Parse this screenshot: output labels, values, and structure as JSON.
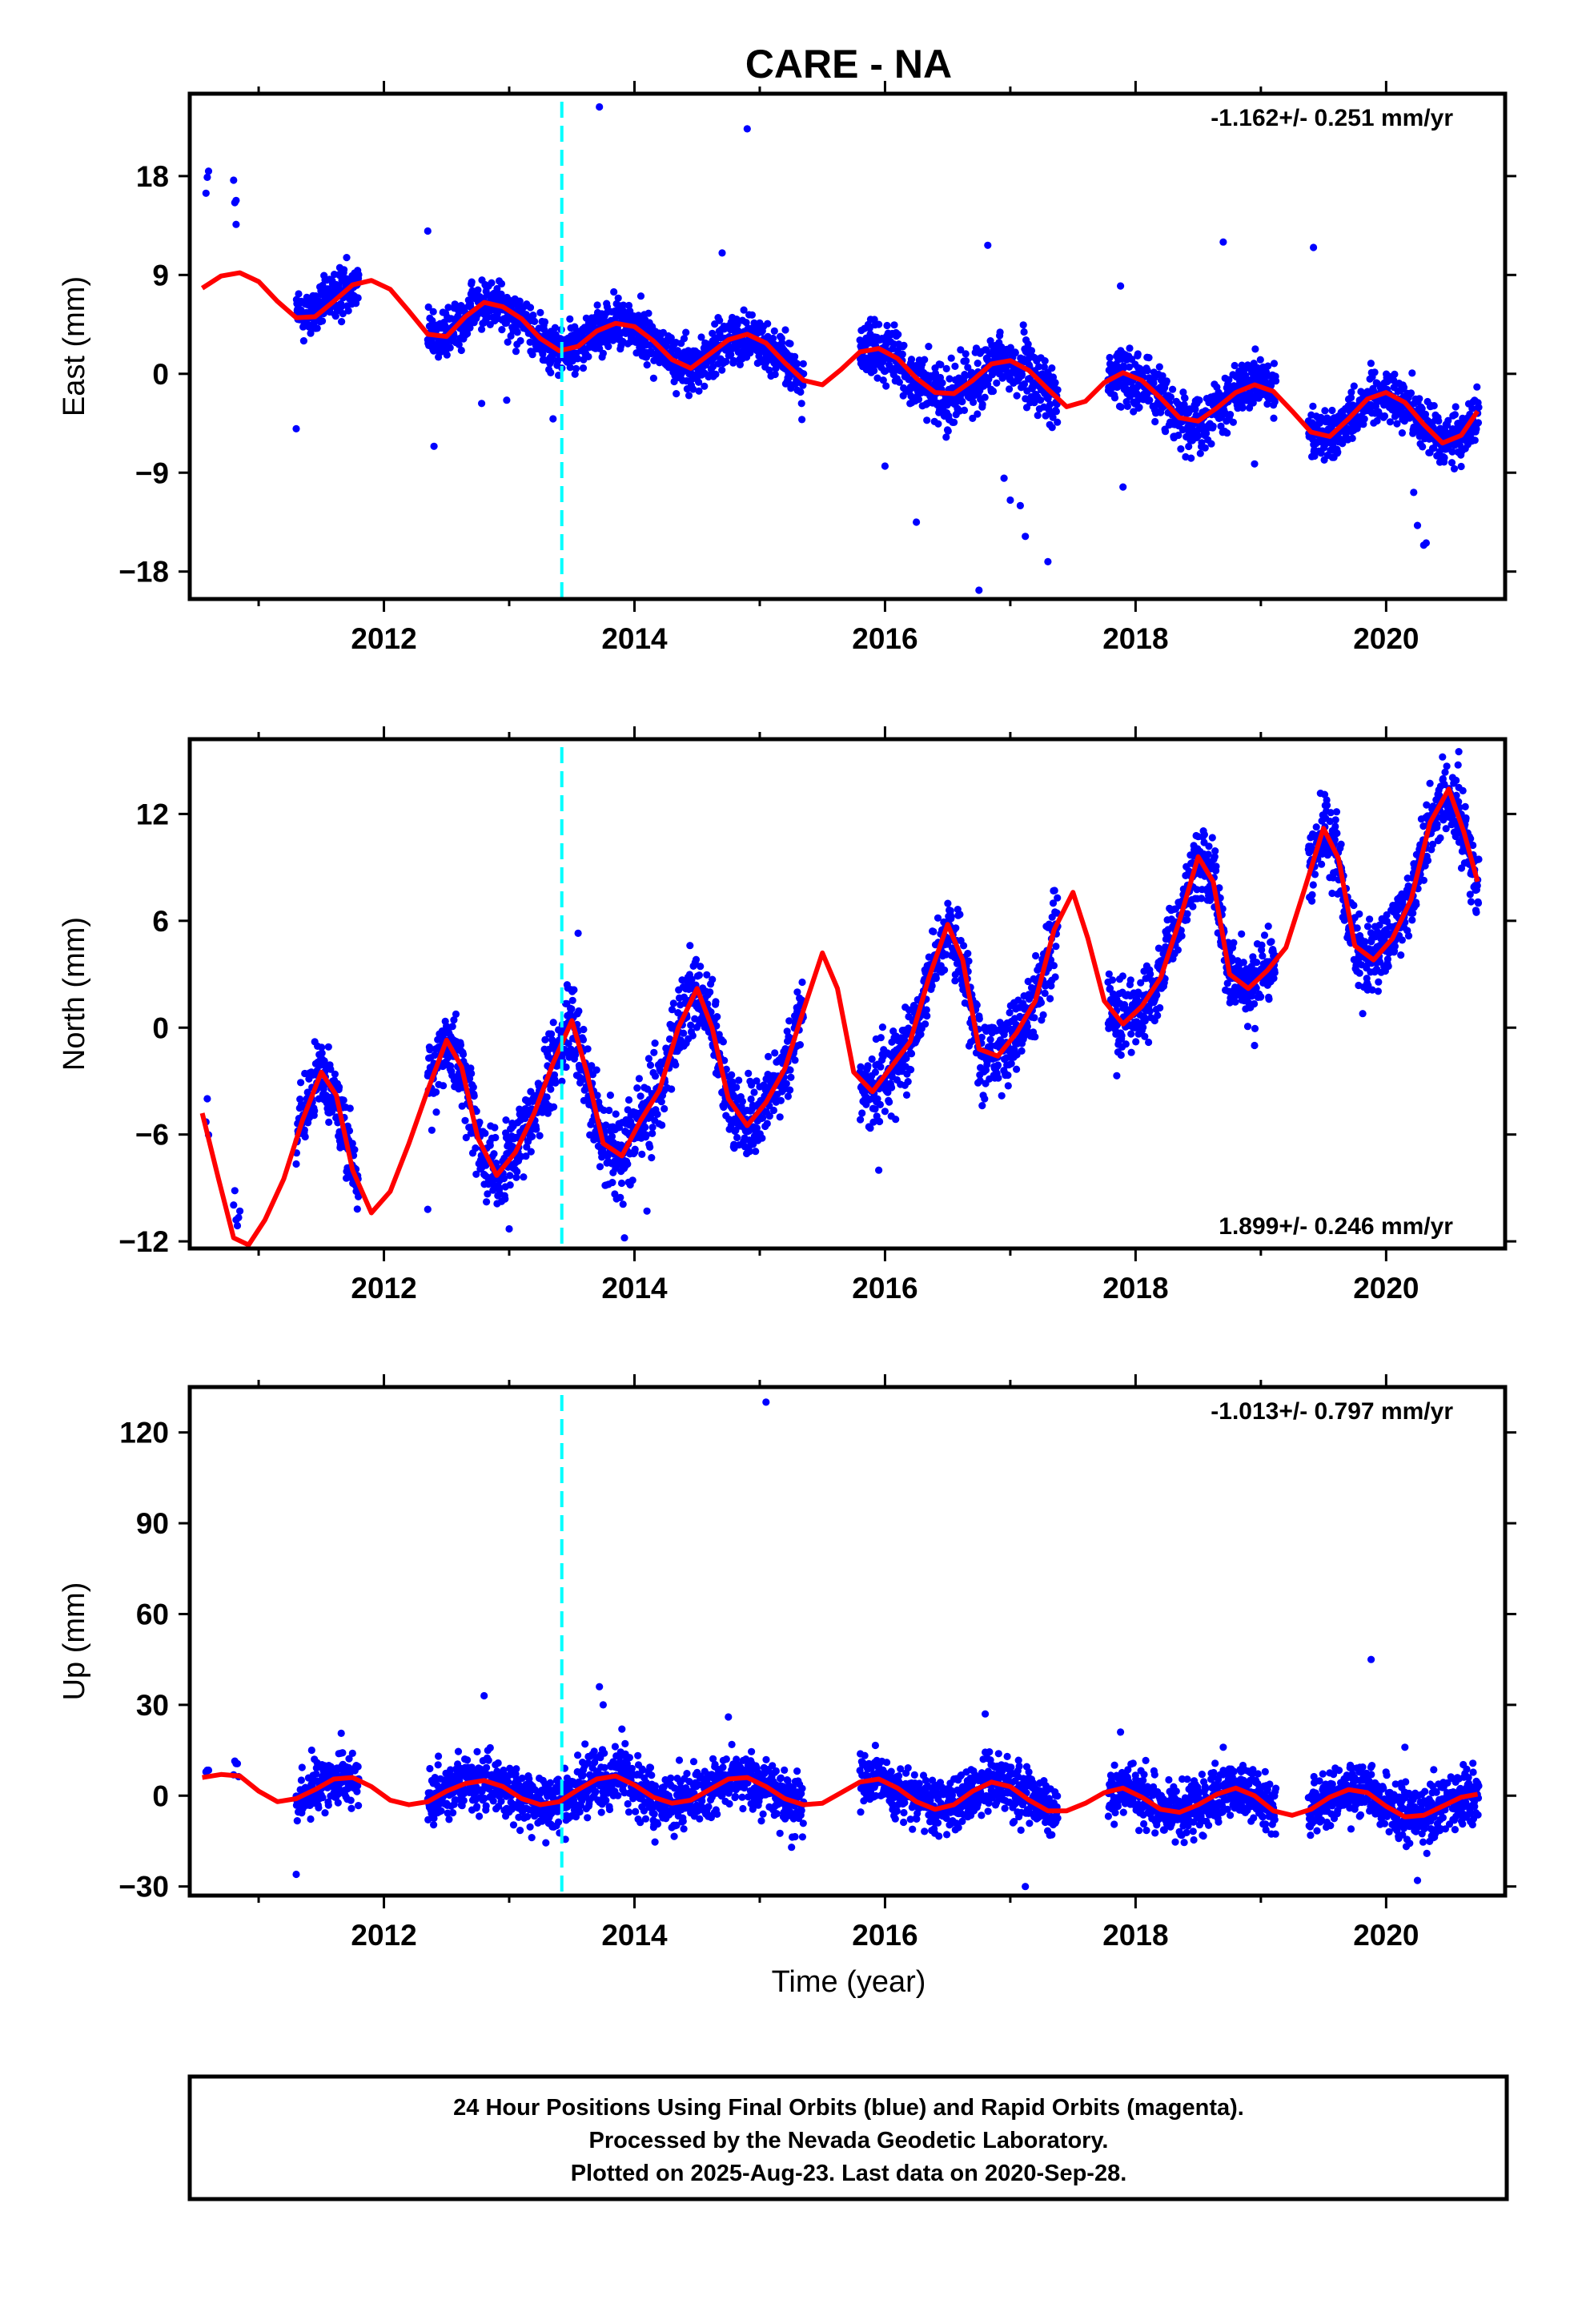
{
  "title": "CARE - NA",
  "xlabel": "Time (year)",
  "footer": {
    "line1": "24 Hour Positions Using Final Orbits (blue) and Rapid Orbits (magenta).",
    "line2": "Processed by the Nevada Geodetic Laboratory.",
    "line3": "Plotted on 2025-Aug-23. Last data on 2020-Sep-28."
  },
  "colors": {
    "points_final": "#0000ff",
    "points_rapid": "#ff00ff",
    "model": "#ff0000",
    "event_line": "#00ffff",
    "axis": "#000000"
  },
  "chart_data": [
    {
      "type": "scatter",
      "component": "east",
      "ylabel": "East (mm)",
      "rate_text": "-1.162+/- 0.251 mm/yr",
      "rate_position": "top-right",
      "xlim": [
        2010.45,
        2020.95
      ],
      "ylim": [
        -20.5,
        25.5
      ],
      "yticks": [
        18,
        9,
        0,
        -9,
        -18
      ],
      "ytick_labels": [
        "18",
        "9",
        "0",
        "−9",
        "−18"
      ],
      "xticks": [
        2012,
        2014,
        2016,
        2018,
        2020
      ],
      "xtick_labels": [
        "2012",
        "2014",
        "2016",
        "2018",
        "2020"
      ],
      "event_lines": [
        2013.42
      ],
      "grid": false,
      "model": {
        "x": [
          2010.55,
          2010.7,
          2010.85,
          2011.0,
          2011.15,
          2011.3,
          2011.45,
          2011.6,
          2011.75,
          2011.9,
          2012.05,
          2012.2,
          2012.35,
          2012.5,
          2012.65,
          2012.8,
          2012.95,
          2013.1,
          2013.25,
          2013.4,
          2013.55,
          2013.7,
          2013.85,
          2014.0,
          2014.15,
          2014.3,
          2014.45,
          2014.6,
          2014.75,
          2014.9,
          2015.05,
          2015.2,
          2015.35,
          2015.5,
          2015.65,
          2015.8,
          2015.95,
          2016.1,
          2016.25,
          2016.4,
          2016.55,
          2016.7,
          2016.85,
          2017.0,
          2017.15,
          2017.3,
          2017.45,
          2017.6,
          2017.75,
          2017.9,
          2018.05,
          2018.2,
          2018.35,
          2018.5,
          2018.65,
          2018.8,
          2018.95,
          2019.1,
          2019.25,
          2019.4,
          2019.55,
          2019.7,
          2019.85,
          2020.0,
          2020.15,
          2020.3,
          2020.45,
          2020.6,
          2020.73
        ],
        "y": [
          7.8,
          8.9,
          9.2,
          8.4,
          6.6,
          5.1,
          5.2,
          6.6,
          8.1,
          8.5,
          7.7,
          5.7,
          3.6,
          3.4,
          5.2,
          6.5,
          6.1,
          5.0,
          3.2,
          2.1,
          2.5,
          3.9,
          4.6,
          4.3,
          3.0,
          1.3,
          0.5,
          1.8,
          3.1,
          3.6,
          2.8,
          1.0,
          -0.6,
          -1.0,
          0.4,
          2.0,
          2.3,
          1.4,
          -0.4,
          -1.7,
          -1.8,
          -0.6,
          0.9,
          1.2,
          0.3,
          -1.4,
          -3.0,
          -2.5,
          -0.8,
          0.1,
          -0.6,
          -2.2,
          -4.0,
          -4.3,
          -3.1,
          -1.7,
          -1.0,
          -1.6,
          -3.4,
          -5.3,
          -5.7,
          -4.1,
          -2.3,
          -1.7,
          -2.6,
          -4.6,
          -6.3,
          -5.6,
          -3.4
        ]
      },
      "segments": [
        {
          "start": 2010.58,
          "end": 2010.6,
          "offset": 9.5,
          "amp": 1.0
        },
        {
          "start": 2010.8,
          "end": 2010.82,
          "offset": 7.2,
          "amp": 1.0
        },
        {
          "start": 2011.3,
          "end": 2011.8,
          "offset": 0.4,
          "amp": 1.1
        },
        {
          "start": 2012.35,
          "end": 2015.35,
          "offset": 0.0,
          "amp": 1.1
        },
        {
          "start": 2015.8,
          "end": 2017.38,
          "offset": -0.3,
          "amp": 1.4
        },
        {
          "start": 2017.78,
          "end": 2019.12,
          "offset": 0.0,
          "amp": 1.2
        },
        {
          "start": 2019.38,
          "end": 2020.74,
          "offset": 0.0,
          "amp": 1.2
        }
      ],
      "outliers": [
        {
          "x": 2013.72,
          "y": 24.3
        },
        {
          "x": 2014.9,
          "y": 22.3
        },
        {
          "x": 2010.82,
          "y": 13.6
        },
        {
          "x": 2012.35,
          "y": 13.0
        },
        {
          "x": 2014.7,
          "y": 11.0
        },
        {
          "x": 2016.82,
          "y": 11.7
        },
        {
          "x": 2018.7,
          "y": 12.0
        },
        {
          "x": 2019.42,
          "y": 11.5
        },
        {
          "x": 2017.88,
          "y": 8.0
        },
        {
          "x": 2011.3,
          "y": -5.0
        },
        {
          "x": 2012.4,
          "y": -6.6
        },
        {
          "x": 2012.78,
          "y": -2.7
        },
        {
          "x": 2012.98,
          "y": -2.4
        },
        {
          "x": 2013.35,
          "y": -4.1
        },
        {
          "x": 2016.25,
          "y": -13.5
        },
        {
          "x": 2016.75,
          "y": -19.7
        },
        {
          "x": 2016.95,
          "y": -9.5
        },
        {
          "x": 2017.0,
          "y": -11.5
        },
        {
          "x": 2017.08,
          "y": -12.0
        },
        {
          "x": 2017.12,
          "y": -14.8
        },
        {
          "x": 2017.3,
          "y": -17.1
        },
        {
          "x": 2017.9,
          "y": -10.3
        },
        {
          "x": 2018.95,
          "y": -8.2
        },
        {
          "x": 2020.25,
          "y": -13.8
        },
        {
          "x": 2020.3,
          "y": -15.6
        },
        {
          "x": 2020.32,
          "y": -15.4
        },
        {
          "x": 2020.22,
          "y": -10.8
        },
        {
          "x": 2016.0,
          "y": -8.4
        },
        {
          "x": 2015.95,
          "y": 4.5
        }
      ]
    },
    {
      "type": "scatter",
      "component": "north",
      "ylabel": "North (mm)",
      "rate_text": "1.899+/- 0.246 mm/yr",
      "rate_position": "bottom-right",
      "xlim": [
        2010.45,
        2020.95
      ],
      "ylim": [
        -12.4,
        16.2
      ],
      "yticks": [
        12,
        6,
        0,
        -6,
        -12
      ],
      "ytick_labels": [
        "12",
        "6",
        "0",
        "−6",
        "−12"
      ],
      "xticks": [
        2012,
        2014,
        2016,
        2018,
        2020
      ],
      "xtick_labels": [
        "2012",
        "2014",
        "2016",
        "2018",
        "2020"
      ],
      "event_lines": [
        2013.42
      ],
      "grid": false,
      "model": {
        "x": [
          2010.55,
          2010.68,
          2010.8,
          2010.92,
          2011.05,
          2011.2,
          2011.35,
          2011.5,
          2011.62,
          2011.75,
          2011.9,
          2012.05,
          2012.2,
          2012.35,
          2012.5,
          2012.62,
          2012.75,
          2012.9,
          2013.05,
          2013.2,
          2013.35,
          2013.5,
          2013.62,
          2013.75,
          2013.9,
          2014.05,
          2014.2,
          2014.35,
          2014.5,
          2014.62,
          2014.75,
          2014.9,
          2015.05,
          2015.2,
          2015.35,
          2015.5,
          2015.62,
          2015.75,
          2015.9,
          2016.05,
          2016.2,
          2016.35,
          2016.5,
          2016.62,
          2016.75,
          2016.9,
          2017.05,
          2017.2,
          2017.35,
          2017.5,
          2017.62,
          2017.75,
          2017.9,
          2018.05,
          2018.2,
          2018.35,
          2018.5,
          2018.62,
          2018.75,
          2018.9,
          2019.05,
          2019.2,
          2019.35,
          2019.5,
          2019.62,
          2019.75,
          2019.9,
          2020.05,
          2020.2,
          2020.35,
          2020.5,
          2020.62,
          2020.73
        ],
        "y": [
          -4.8,
          -8.5,
          -11.8,
          -12.2,
          -10.8,
          -8.5,
          -5.2,
          -2.5,
          -3.8,
          -8.0,
          -10.4,
          -9.2,
          -6.5,
          -3.5,
          -0.7,
          -2.2,
          -6.2,
          -8.3,
          -7.0,
          -4.8,
          -2.0,
          0.4,
          -2.5,
          -6.5,
          -7.2,
          -5.2,
          -3.5,
          0.0,
          2.2,
          0.0,
          -4.0,
          -5.5,
          -4.2,
          -2.3,
          1.0,
          4.2,
          2.2,
          -2.5,
          -3.6,
          -2.2,
          -0.8,
          2.8,
          5.8,
          3.8,
          -1.2,
          -1.6,
          -0.3,
          1.5,
          5.5,
          7.6,
          5.0,
          1.5,
          0.2,
          1.2,
          2.8,
          6.0,
          9.6,
          8.2,
          3.0,
          2.2,
          3.2,
          4.5,
          7.8,
          11.2,
          9.5,
          4.6,
          3.8,
          5.0,
          7.2,
          11.5,
          13.4,
          11.0,
          8.2
        ]
      },
      "segments": [
        {
          "start": 2010.58,
          "end": 2010.6,
          "offset": 0.6,
          "amp": 0.5
        },
        {
          "start": 2010.8,
          "end": 2010.84,
          "offset": 1.5,
          "amp": 0.6
        },
        {
          "start": 2011.3,
          "end": 2011.8,
          "offset": 0.0,
          "amp": 1.0
        },
        {
          "start": 2012.35,
          "end": 2015.35,
          "offset": 0.0,
          "amp": 1.1
        },
        {
          "start": 2015.8,
          "end": 2017.38,
          "offset": 0.0,
          "amp": 1.1
        },
        {
          "start": 2017.78,
          "end": 2019.12,
          "offset": 0.0,
          "amp": 1.0
        },
        {
          "start": 2019.38,
          "end": 2020.74,
          "offset": 0.0,
          "amp": 1.0
        }
      ],
      "outliers": [
        {
          "x": 2013.55,
          "y": 5.3
        },
        {
          "x": 2012.35,
          "y": -10.2
        },
        {
          "x": 2013.0,
          "y": -11.3
        },
        {
          "x": 2013.92,
          "y": -11.8
        },
        {
          "x": 2014.1,
          "y": -10.3
        },
        {
          "x": 2010.85,
          "y": -10.3
        },
        {
          "x": 2015.95,
          "y": -8.0
        },
        {
          "x": 2018.95,
          "y": -1.0
        },
        {
          "x": 2017.85,
          "y": -2.7
        },
        {
          "x": 2020.45,
          "y": 15.2
        },
        {
          "x": 2020.58,
          "y": 15.5
        },
        {
          "x": 2015.3,
          "y": 2.0
        }
      ]
    },
    {
      "type": "scatter",
      "component": "up",
      "ylabel": "Up (mm)",
      "rate_text": "-1.013+/- 0.797 mm/yr",
      "rate_position": "top-right",
      "xlim": [
        2010.45,
        2020.95
      ],
      "ylim": [
        -33,
        135
      ],
      "yticks": [
        120,
        90,
        60,
        30,
        0,
        -30
      ],
      "ytick_labels": [
        "120",
        "90",
        "60",
        "30",
        "0",
        "−30"
      ],
      "xticks": [
        2012,
        2014,
        2016,
        2018,
        2020
      ],
      "xtick_labels": [
        "2012",
        "2014",
        "2016",
        "2018",
        "2020"
      ],
      "event_lines": [
        2013.42
      ],
      "grid": false,
      "model": {
        "x": [
          2010.55,
          2010.7,
          2010.85,
          2011.0,
          2011.15,
          2011.3,
          2011.45,
          2011.6,
          2011.75,
          2011.9,
          2012.05,
          2012.2,
          2012.35,
          2012.5,
          2012.65,
          2012.8,
          2012.95,
          2013.1,
          2013.25,
          2013.4,
          2013.55,
          2013.7,
          2013.85,
          2014.0,
          2014.15,
          2014.3,
          2014.45,
          2014.6,
          2014.75,
          2014.9,
          2015.05,
          2015.2,
          2015.35,
          2015.5,
          2015.65,
          2015.8,
          2015.95,
          2016.1,
          2016.25,
          2016.4,
          2016.55,
          2016.7,
          2016.85,
          2017.0,
          2017.15,
          2017.3,
          2017.45,
          2017.6,
          2017.75,
          2017.9,
          2018.05,
          2018.2,
          2018.35,
          2018.5,
          2018.65,
          2018.8,
          2018.95,
          2019.1,
          2019.25,
          2019.4,
          2019.55,
          2019.7,
          2019.85,
          2020.0,
          2020.15,
          2020.3,
          2020.45,
          2020.6,
          2020.73
        ],
        "y": [
          6.0,
          7.0,
          6.5,
          1.5,
          -2.0,
          -1.0,
          2.0,
          5.5,
          6.0,
          3.0,
          -1.5,
          -3.0,
          -2.0,
          1.5,
          4.0,
          5.0,
          3.0,
          -1.0,
          -3.0,
          -2.0,
          2.0,
          5.5,
          6.5,
          3.5,
          -0.5,
          -2.5,
          -1.5,
          2.0,
          5.5,
          6.0,
          3.0,
          -1.0,
          -3.0,
          -2.5,
          1.0,
          4.5,
          5.5,
          2.5,
          -2.0,
          -4.5,
          -3.0,
          1.5,
          4.5,
          3.0,
          -1.5,
          -5.0,
          -5.0,
          -2.5,
          1.0,
          2.5,
          -0.5,
          -4.5,
          -5.5,
          -3.0,
          0.5,
          2.5,
          0.0,
          -5.0,
          -6.5,
          -4.5,
          -0.5,
          2.0,
          1.0,
          -3.5,
          -7.0,
          -6.5,
          -3.5,
          -0.5,
          0.5
        ]
      },
      "segments": [
        {
          "start": 2010.58,
          "end": 2010.6,
          "offset": 0.0,
          "amp": 2.5
        },
        {
          "start": 2010.8,
          "end": 2010.84,
          "offset": 4.0,
          "amp": 3.0
        },
        {
          "start": 2011.3,
          "end": 2011.8,
          "offset": 0.0,
          "amp": 4.5
        },
        {
          "start": 2012.35,
          "end": 2015.35,
          "offset": 0.0,
          "amp": 4.5
        },
        {
          "start": 2015.8,
          "end": 2017.38,
          "offset": 0.0,
          "amp": 4.5
        },
        {
          "start": 2017.78,
          "end": 2019.12,
          "offset": 0.0,
          "amp": 4.5
        },
        {
          "start": 2019.38,
          "end": 2020.74,
          "offset": 0.0,
          "amp": 4.5
        }
      ],
      "outliers": [
        {
          "x": 2015.05,
          "y": 130
        },
        {
          "x": 2019.88,
          "y": 45
        },
        {
          "x": 2013.72,
          "y": 36
        },
        {
          "x": 2012.8,
          "y": 33
        },
        {
          "x": 2013.75,
          "y": 30
        },
        {
          "x": 2014.75,
          "y": 26
        },
        {
          "x": 2016.8,
          "y": 27
        },
        {
          "x": 2017.88,
          "y": 21
        },
        {
          "x": 2020.15,
          "y": 16
        },
        {
          "x": 2011.3,
          "y": -26
        },
        {
          "x": 2017.12,
          "y": -30
        },
        {
          "x": 2020.25,
          "y": -28
        },
        {
          "x": 2013.9,
          "y": 22
        },
        {
          "x": 2018.7,
          "y": 16
        }
      ]
    }
  ]
}
